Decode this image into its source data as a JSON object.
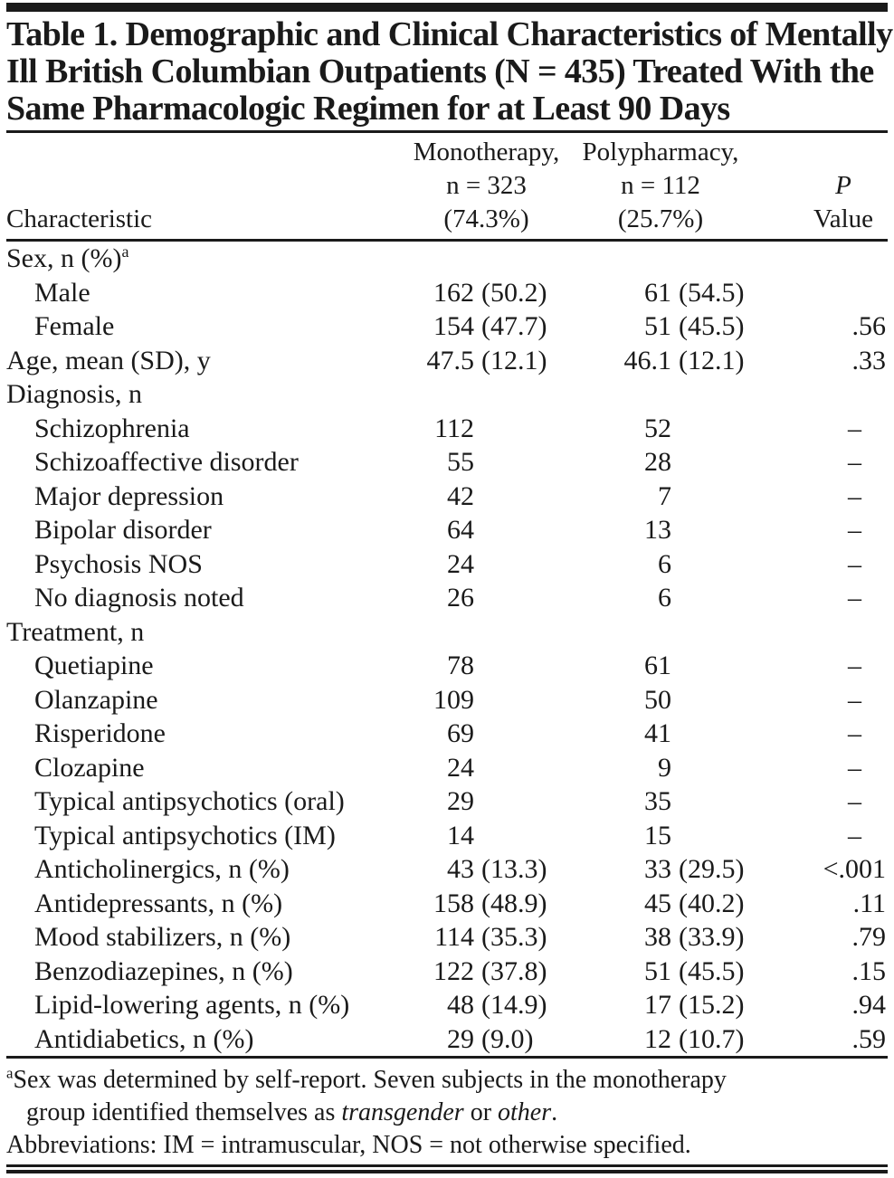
{
  "title_lines": [
    "Table 1. Demographic and Clinical Characteristics of Mentally",
    "Ill British Columbian Outpatients (N = 435) Treated With the",
    "Same Pharmacologic Regimen for at Least 90 Days"
  ],
  "columns": {
    "characteristic": "Characteristic",
    "monotherapy": {
      "line1": "Monotherapy,",
      "line2": "n = 323",
      "line3": "(74.3%)"
    },
    "polypharmacy": {
      "line1": "Polypharmacy,",
      "line2": "n = 112",
      "line3": "(25.7%)"
    },
    "p": {
      "line1": "P",
      "line2": "Value"
    }
  },
  "rows": [
    {
      "label": "Sex, n (%)",
      "sup": "a",
      "indent": false,
      "mono_n": "",
      "mono_pct": "",
      "poly_n": "",
      "poly_pct": "",
      "p": ""
    },
    {
      "label": "Male",
      "sup": "",
      "indent": true,
      "mono_n": "162",
      "mono_pct": "(50.2)",
      "poly_n": "61",
      "poly_pct": "(54.5)",
      "p": ""
    },
    {
      "label": "Female",
      "sup": "",
      "indent": true,
      "mono_n": "154",
      "mono_pct": "(47.7)",
      "poly_n": "51",
      "poly_pct": "(45.5)",
      "p": ".56"
    },
    {
      "label": "Age, mean (SD), y",
      "sup": "",
      "indent": false,
      "mono_n": "47.5",
      "mono_pct": "(12.1)",
      "poly_n": "46.1",
      "poly_pct": "(12.1)",
      "p": ".33"
    },
    {
      "label": "Diagnosis, n",
      "sup": "",
      "indent": false,
      "mono_n": "",
      "mono_pct": "",
      "poly_n": "",
      "poly_pct": "",
      "p": ""
    },
    {
      "label": "Schizophrenia",
      "sup": "",
      "indent": true,
      "mono_n": "112",
      "mono_pct": "",
      "poly_n": "52",
      "poly_pct": "",
      "p": "–"
    },
    {
      "label": "Schizoaffective disorder",
      "sup": "",
      "indent": true,
      "mono_n": "55",
      "mono_pct": "",
      "poly_n": "28",
      "poly_pct": "",
      "p": "–"
    },
    {
      "label": "Major depression",
      "sup": "",
      "indent": true,
      "mono_n": "42",
      "mono_pct": "",
      "poly_n": "7",
      "poly_pct": "",
      "p": "–"
    },
    {
      "label": "Bipolar disorder",
      "sup": "",
      "indent": true,
      "mono_n": "64",
      "mono_pct": "",
      "poly_n": "13",
      "poly_pct": "",
      "p": "–"
    },
    {
      "label": "Psychosis NOS",
      "sup": "",
      "indent": true,
      "mono_n": "24",
      "mono_pct": "",
      "poly_n": "6",
      "poly_pct": "",
      "p": "–"
    },
    {
      "label": "No diagnosis noted",
      "sup": "",
      "indent": true,
      "mono_n": "26",
      "mono_pct": "",
      "poly_n": "6",
      "poly_pct": "",
      "p": "–"
    },
    {
      "label": "Treatment, n",
      "sup": "",
      "indent": false,
      "mono_n": "",
      "mono_pct": "",
      "poly_n": "",
      "poly_pct": "",
      "p": ""
    },
    {
      "label": "Quetiapine",
      "sup": "",
      "indent": true,
      "mono_n": "78",
      "mono_pct": "",
      "poly_n": "61",
      "poly_pct": "",
      "p": "–"
    },
    {
      "label": "Olanzapine",
      "sup": "",
      "indent": true,
      "mono_n": "109",
      "mono_pct": "",
      "poly_n": "50",
      "poly_pct": "",
      "p": "–"
    },
    {
      "label": "Risperidone",
      "sup": "",
      "indent": true,
      "mono_n": "69",
      "mono_pct": "",
      "poly_n": "41",
      "poly_pct": "",
      "p": "–"
    },
    {
      "label": "Clozapine",
      "sup": "",
      "indent": true,
      "mono_n": "24",
      "mono_pct": "",
      "poly_n": "9",
      "poly_pct": "",
      "p": "–"
    },
    {
      "label": "Typical antipsychotics (oral)",
      "sup": "",
      "indent": true,
      "mono_n": "29",
      "mono_pct": "",
      "poly_n": "35",
      "poly_pct": "",
      "p": "–"
    },
    {
      "label": "Typical antipsychotics (IM)",
      "sup": "",
      "indent": true,
      "mono_n": "14",
      "mono_pct": "",
      "poly_n": "15",
      "poly_pct": "",
      "p": "–"
    },
    {
      "label": "Anticholinergics, n (%)",
      "sup": "",
      "indent": true,
      "mono_n": "43",
      "mono_pct": "(13.3)",
      "poly_n": "33",
      "poly_pct": "(29.5)",
      "p": "<.001"
    },
    {
      "label": "Antidepressants, n (%)",
      "sup": "",
      "indent": true,
      "mono_n": "158",
      "mono_pct": "(48.9)",
      "poly_n": "45",
      "poly_pct": "(40.2)",
      "p": ".11"
    },
    {
      "label": "Mood stabilizers, n (%)",
      "sup": "",
      "indent": true,
      "mono_n": "114",
      "mono_pct": "(35.3)",
      "poly_n": "38",
      "poly_pct": "(33.9)",
      "p": ".79"
    },
    {
      "label": "Benzodiazepines, n (%)",
      "sup": "",
      "indent": true,
      "mono_n": "122",
      "mono_pct": "(37.8)",
      "poly_n": "51",
      "poly_pct": "(45.5)",
      "p": ".15"
    },
    {
      "label": "Lipid-lowering agents, n (%)",
      "sup": "",
      "indent": true,
      "mono_n": "48",
      "mono_pct": "(14.9)",
      "poly_n": "17",
      "poly_pct": "(15.2)",
      "p": ".94"
    },
    {
      "label": "Antidiabetics, n (%)",
      "sup": "",
      "indent": true,
      "mono_n": "29",
      "mono_pct": "(9.0)",
      "poly_n": "12",
      "poly_pct": "(10.7)",
      "p": ".59"
    }
  ],
  "footnotes": {
    "a_marker": "a",
    "a_line1": "Sex was determined by self-report. Seven subjects in the monotherapy",
    "a_line2_prefix": "group identified themselves as ",
    "a_line2_italic1": "transgender",
    "a_line2_mid": " or ",
    "a_line2_italic2": "other",
    "a_line2_suffix": ".",
    "abbreviations": "Abbreviations: IM = intramuscular, NOS = not otherwise specified."
  }
}
